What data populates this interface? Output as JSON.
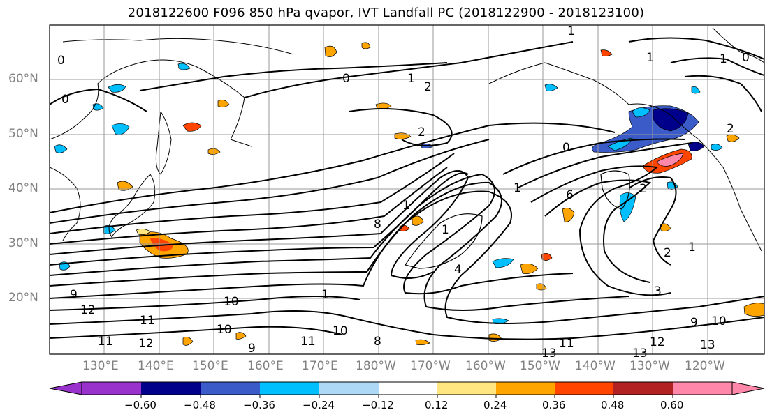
{
  "title": "2018122600 F096 850 hPa qvapor, IVT Landfall PC (2018122900 - 2018123100)",
  "lat_labels": [
    "60°N",
    "50°N",
    "40°N",
    "30°N",
    "20°N"
  ],
  "lon_labels": [
    "130°E",
    "140°E",
    "150°E",
    "160°E",
    "170°E",
    "180°W",
    "170°W",
    "160°W",
    "150°W",
    "140°W",
    "130°W",
    "120°W"
  ],
  "colorbar": {
    "colors": [
      "#9932CC",
      "#00008B",
      "#3A5BC8",
      "#00BFFF",
      "#ADD8F6",
      "#FFFFFF",
      "#FFE680",
      "#FFA500",
      "#FF4500",
      "#B22222",
      "#FF88AA"
    ],
    "tick_labels": [
      "−0.60",
      "−0.48",
      "−0.36",
      "−0.24",
      "−0.12",
      "0.12",
      "0.24",
      "0.36",
      "0.48",
      "0.60"
    ]
  },
  "contour_labels": [
    "0",
    "0",
    "0",
    "0",
    "0",
    "1",
    "1",
    "1",
    "1",
    "1",
    "1",
    "1",
    "1",
    "1",
    "2",
    "2",
    "2",
    "2",
    "2",
    "3",
    "4",
    "6",
    "8",
    "8",
    "9",
    "9",
    "9",
    "10",
    "10",
    "10",
    "10",
    "11",
    "11",
    "11",
    "11",
    "12",
    "12",
    "12",
    "13",
    "13",
    "13"
  ]
}
